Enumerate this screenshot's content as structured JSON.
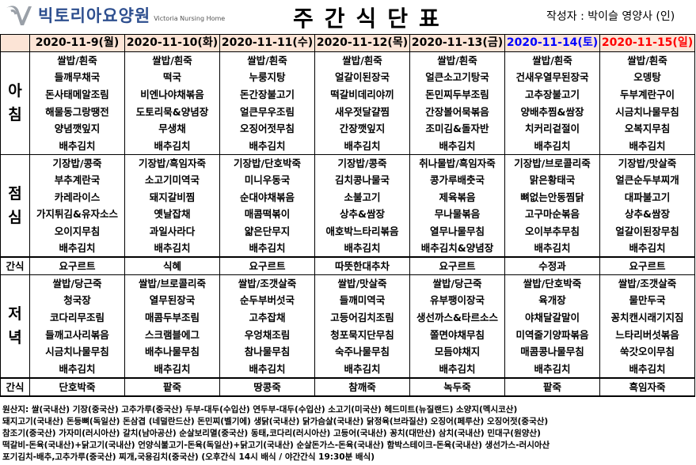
{
  "header": {
    "logo_name": "빅토리아요양원",
    "logo_sub": "Victoria Nursing Home",
    "title": "주간식단표",
    "author": "작성자 : 박이슬 영양사 (인)"
  },
  "colors": {
    "date_bg": "#fce4d6",
    "saturday": "#0000ff",
    "sunday": "#ff0000",
    "logo": "#2e4f8f"
  },
  "dates": [
    "2020-11-9(월)",
    "2020-11-10(화)",
    "2020-11-11(수)",
    "2020-11-12(목)",
    "2020-11-13(금)",
    "2020-11-14(토)",
    "2020-11-15(일)"
  ],
  "meals": [
    {
      "label": [
        "아",
        "침"
      ],
      "days": [
        [
          "쌀밥/흰죽",
          "들깨무채국",
          "돈사태메알조림",
          "해물동그랑땡전",
          "양념깻잎지",
          "배추김치"
        ],
        [
          "쌀밥/흰죽",
          "떡국",
          "비엔나야채볶음",
          "도토리묵&양념장",
          "무생채",
          "배추김치"
        ],
        [
          "쌀밥/흰죽",
          "누룽지탕",
          "돈간장불고기",
          "얼큰무우조림",
          "오징어젓무침",
          "배추김치"
        ],
        [
          "쌀밥/흰죽",
          "얼갈이된장국",
          "떡갈비데리야끼",
          "새우젓달걀찜",
          "간장깻잎지",
          "배추김치"
        ],
        [
          "쌀밥/흰죽",
          "얼큰소고기탕국",
          "돈민찌두부조림",
          "간장볼어묵볶음",
          "조미김&돌자반",
          "배추김치"
        ],
        [
          "쌀밥/흰죽",
          "건새우열무된장국",
          "고추장불고기",
          "양배추찜&쌈장",
          "치커리겉절이",
          "배추김치"
        ],
        [
          "쌀밥/흰죽",
          "오뎅탕",
          "두부계란구이",
          "시금치나물무침",
          "오복지무침",
          "배추김치"
        ]
      ]
    },
    {
      "label": [
        "점",
        "심"
      ],
      "snack_label": "간식",
      "snack": [
        "요구르트",
        "식혜",
        "요구르트",
        "따뜻한대추차",
        "요구르트",
        "수정과",
        "요구르트"
      ],
      "days": [
        [
          "기장밥/콩죽",
          "부추계란국",
          "카레라이스",
          "가지튀김&유자소스",
          "오이지무침",
          "배추김치"
        ],
        [
          "기장밥/흑임자죽",
          "소고기미역국",
          "돼지갈비찜",
          "옛날잡채",
          "과일사라다",
          "배추김치"
        ],
        [
          "기장밥/단호박죽",
          "미니우동국",
          "순대야채볶음",
          "매콤떡볶이",
          "얇은단무지",
          "배추김치"
        ],
        [
          "기장밥/콩죽",
          "김치콩나물국",
          "소불고기",
          "상추&쌈장",
          "애호박느타리볶음",
          "배추김치"
        ],
        [
          "취나물밥/흑임자죽",
          "콩가루배춧국",
          "제육볶음",
          "무나물볶음",
          "열무나물무침",
          "배추김치&양념장"
        ],
        [
          "기장밥/브로콜리죽",
          "맑은황태국",
          "뼈없는안동찜닭",
          "고구마순볶음",
          "오이부추무침",
          "배추김치"
        ],
        [
          "기장밥/맛살죽",
          "얼큰순두부찌개",
          "대파불고기",
          "상추&쌈장",
          "얼갈이된장무침",
          "배추김치"
        ]
      ]
    },
    {
      "label": [
        "저",
        "녁"
      ],
      "snack_label": "간식",
      "snack": [
        "단호박죽",
        "팥죽",
        "땅콩죽",
        "참깨죽",
        "녹두죽",
        "팥죽",
        "흑임자죽"
      ],
      "days": [
        [
          "쌀밥/당근죽",
          "청국장",
          "코다리무조림",
          "들깨고사리볶음",
          "시금치나물무침",
          "배추김치"
        ],
        [
          "쌀밥/브로콜리죽",
          "열무된장국",
          "매콤두부조림",
          "스크램블에그",
          "배추나물무침",
          "배추김치"
        ],
        [
          "쌀밥/조갯살죽",
          "순두부버섯국",
          "고추잡채",
          "우엉채조림",
          "참나물무침",
          "배추김치"
        ],
        [
          "쌀밥/맛살죽",
          "들깨미역국",
          "고등어김치조림",
          "청포묵지단무침",
          "숙주나물무침",
          "배추김치"
        ],
        [
          "쌀밥/당근죽",
          "유부팽이장국",
          "생선까스&타르소스",
          "쫄면야채무침",
          "모듬야채지",
          "배추김치"
        ],
        [
          "쌀밥/단호박죽",
          "육개장",
          "야채달갈말이",
          "미역줄기양파볶음",
          "매콤콩나물무침",
          "배추김치"
        ],
        [
          "쌀밥/조갯살죽",
          "물만두국",
          "꽁치캔시래기지짐",
          "느타리버섯볶음",
          "쑥갓오이무침",
          "배추김치"
        ]
      ]
    }
  ],
  "origin": [
    "원산지: 쌀(국내산) 기장(중국산) 고추가루(중국산) 두부-대두(수입산) 연두부-대두(수입산) 소고기(미국산) 헤드미트(뉴질랜드) 소양지(멕시코산)",
    "돼지고기(국내산) 돈등뼈(독일산) 돈삼겹 (네덜란드산) 돈민찌(벨기에) 생닭(국내산) 닭가슴살(국내산) 닭정육(브라질산) 오징어(페루산) 오징어젓(중국산)",
    "참조기(중국산) 가자미(러시아산) 갈치(남아공산) 순살보리멸(중국산) 동태,코다리(러시아산) 고등어(국내산) 꽁치(대만산) 삼치(국내산) 민대구(원양산)",
    "떡갈비-돈육(국내산)+닭고기(국내산) 언양식불고기-돈육(독일산)+닭고기(국내산) 순살돈가스-돈육(국내산) 함박스테이크-돈육(국내산) 생선가스-러시아산",
    "포기김치-배추,고추가루(중국산)  찌개,국용김치(중국산)   (오후간식 14시 배식 / 야간간식 19:30분 배식)"
  ]
}
